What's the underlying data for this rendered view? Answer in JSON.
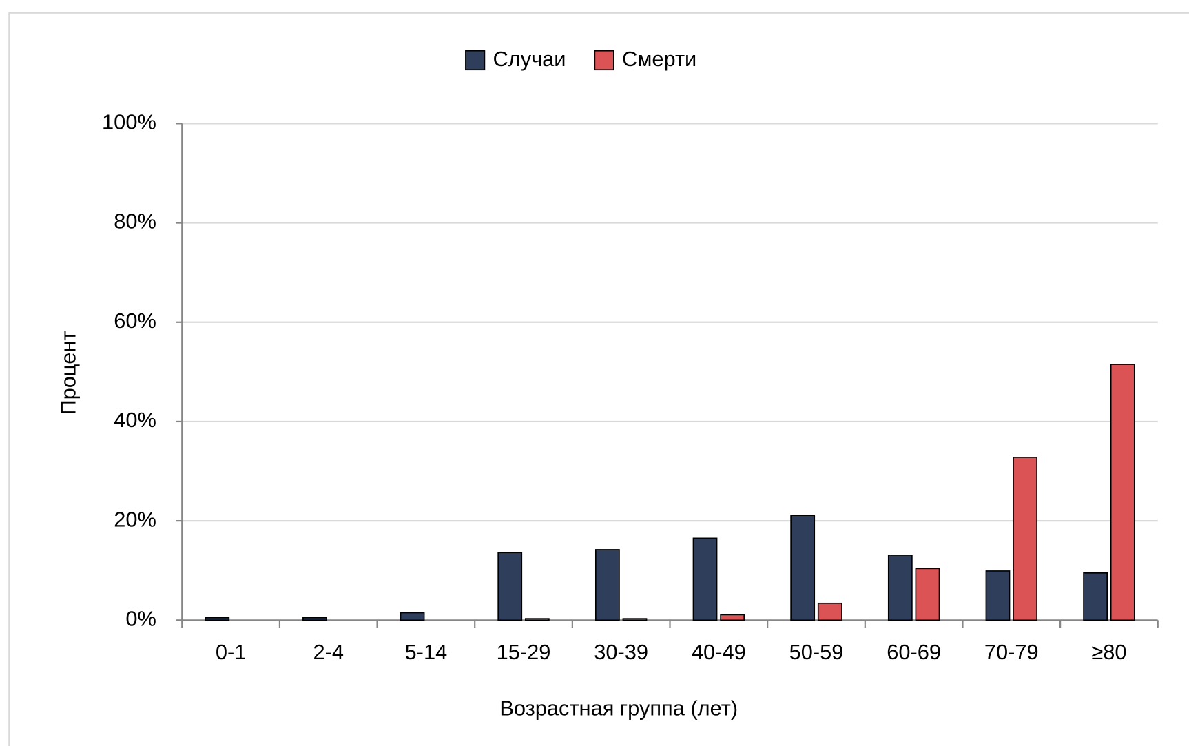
{
  "chart_data": {
    "type": "bar",
    "x_label": "Возрастная группа (лет)",
    "y_label": "Процент",
    "categories": [
      "0-1",
      "2-4",
      "5-14",
      "15-29",
      "30-39",
      "40-49",
      "50-59",
      "60-69",
      "70-79",
      "≥80"
    ],
    "series": [
      {
        "name": "Случаи",
        "color": "#2f3e5a",
        "values": [
          0.5,
          0.5,
          1.5,
          13.6,
          14.2,
          16.5,
          21.1,
          13.1,
          9.9,
          9.5
        ]
      },
      {
        "name": "Смерти",
        "color": "#dc5356",
        "values": [
          0,
          0,
          0,
          0.3,
          0.3,
          1.1,
          3.4,
          10.4,
          32.8,
          51.5
        ]
      }
    ],
    "ylim": [
      0,
      100
    ],
    "yticks": [
      {
        "value": 0,
        "label": "0%"
      },
      {
        "value": 20,
        "label": "20%"
      },
      {
        "value": 40,
        "label": "40%"
      },
      {
        "value": 60,
        "label": "60%"
      },
      {
        "value": 80,
        "label": "80%"
      },
      {
        "value": 100,
        "label": "100%"
      }
    ],
    "grid": true,
    "legend": "top"
  }
}
